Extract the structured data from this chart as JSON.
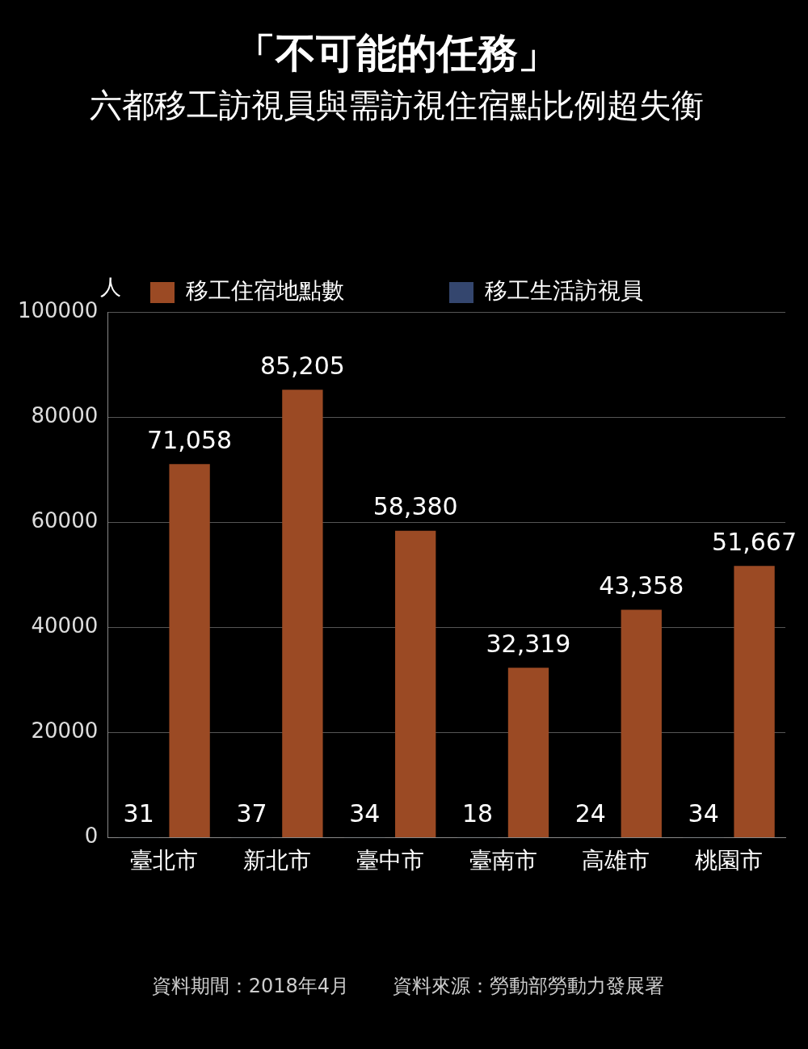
{
  "chart_data": {
    "type": "bar",
    "title": "「不可能的任務」",
    "subtitle": "六都移工訪視員與需訪視住宿點比例超失衡",
    "ylabel": "人",
    "categories": [
      "臺北市",
      "新北市",
      "臺中市",
      "臺南市",
      "高雄市",
      "桃園市"
    ],
    "series": [
      {
        "name": "移工生活訪視員",
        "color": "#34466e",
        "values": [
          31,
          37,
          34,
          18,
          24,
          34
        ],
        "value_labels": [
          "31",
          "37",
          "34",
          "18",
          "24",
          "34"
        ]
      },
      {
        "name": "移工住宿地點數",
        "color": "#9b4a24",
        "values": [
          71058,
          85205,
          58380,
          32319,
          43358,
          51667
        ],
        "value_labels": [
          "71,058",
          "85,205",
          "58,380",
          "32,319",
          "43,358",
          "51,667"
        ]
      }
    ],
    "ylim": [
      0,
      100000
    ],
    "yticks": [
      0,
      20000,
      40000,
      60000,
      80000,
      100000
    ],
    "grid": "y",
    "legend": "top",
    "annotations": [
      "資料期間：2018年4月",
      "資料來源：勞動部勞動力發展署"
    ]
  }
}
